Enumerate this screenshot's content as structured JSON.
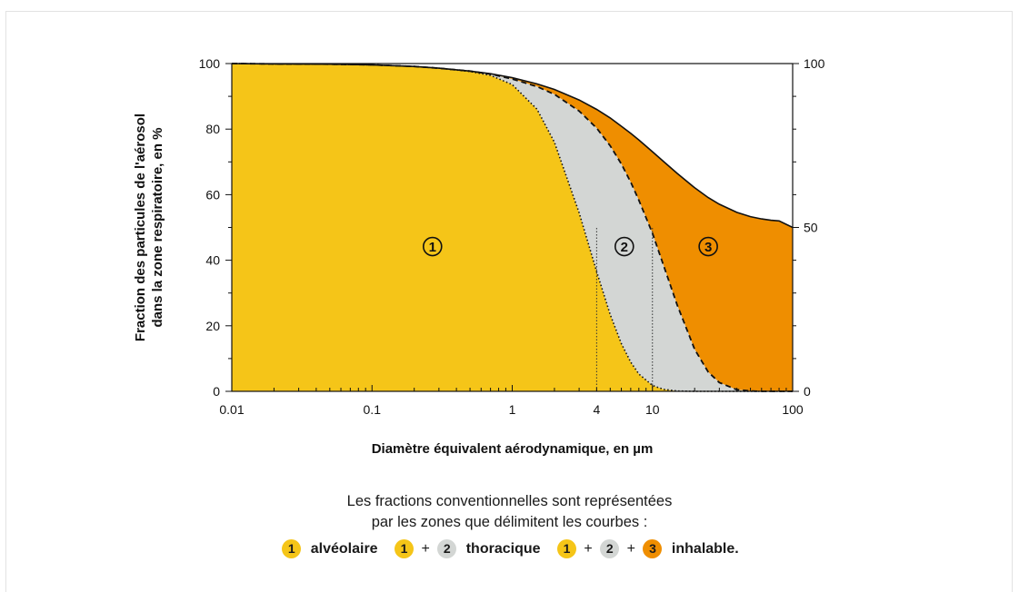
{
  "chart_data": {
    "type": "area",
    "title": "",
    "xlabel": "Diamètre équivalent aérodynamique, en µm",
    "ylabel_lines": [
      "Fraction des particules de l'aérosol",
      "dans la zone respiratoire, en %"
    ],
    "x_scale": "log",
    "xlim": [
      0.01,
      100
    ],
    "ylim": [
      0,
      100
    ],
    "x_ticks": [
      "0.01",
      "0.1",
      "1",
      "4",
      "10",
      "100"
    ],
    "y_ticks_left": [
      "0",
      "20",
      "40",
      "60",
      "80",
      "100"
    ],
    "y_ticks_right": [
      "0",
      "50",
      "100"
    ],
    "grid": false,
    "x": [
      0.01,
      0.02,
      0.05,
      0.1,
      0.2,
      0.3,
      0.5,
      0.7,
      1,
      1.5,
      2,
      3,
      4,
      5,
      6,
      7,
      8,
      10,
      12,
      15,
      20,
      25,
      30,
      40,
      50,
      60,
      70,
      80,
      100
    ],
    "series": [
      {
        "name": "inhalable",
        "values": [
          100,
          99.9,
          99.8,
          99.6,
          99.1,
          98.6,
          97.7,
          96.9,
          95.7,
          93.8,
          92.1,
          88.9,
          86.0,
          83.4,
          80.9,
          78.7,
          76.7,
          73.1,
          70.1,
          66.5,
          62.1,
          59.1,
          57.1,
          54.6,
          53.3,
          52.6,
          52.2,
          52.0,
          50.0
        ]
      },
      {
        "name": "thoracique",
        "values": [
          100,
          99.9,
          99.8,
          99.6,
          99.1,
          98.6,
          97.7,
          96.8,
          95.3,
          93.0,
          90.6,
          85.5,
          80.3,
          74.9,
          69.4,
          63.8,
          58.3,
          48.2,
          38.4,
          26.4,
          12.8,
          5.9,
          2.7,
          0.5,
          0.1,
          0,
          0,
          0,
          0
        ]
      },
      {
        "name": "alvéolaire",
        "values": [
          100,
          99.9,
          99.8,
          99.6,
          99.1,
          98.6,
          97.6,
          96.4,
          93.6,
          86.1,
          76.0,
          54.5,
          36.5,
          23.4,
          14.6,
          8.9,
          5.3,
          1.8,
          0.6,
          0.1,
          0,
          0,
          0,
          0,
          0,
          0,
          0,
          0,
          0
        ]
      }
    ],
    "zone_labels": [
      "1",
      "2",
      "3"
    ],
    "reference_x": [
      4,
      10
    ],
    "colors": {
      "zone1": "#f5c518",
      "zone2": "#d3d6d4",
      "zone3": "#ef8e00"
    }
  },
  "caption": {
    "line1": "Les fractions conventionnelles sont représentées",
    "line2": "par les zones que délimitent les courbes :"
  },
  "legend": {
    "alveolaire": "alvéolaire",
    "thoracique": "thoracique",
    "inhalable": "inhalable.",
    "plus": "+",
    "n1": "1",
    "n2": "2",
    "n3": "3"
  }
}
